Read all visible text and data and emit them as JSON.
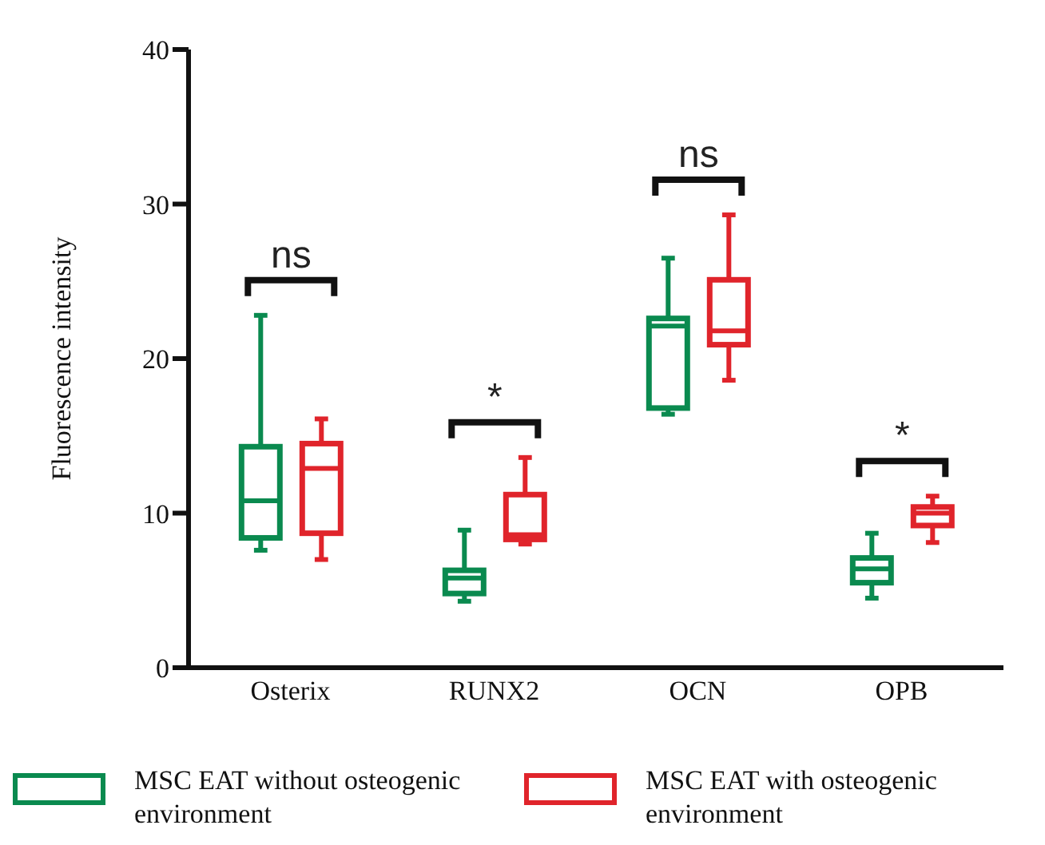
{
  "chart_data": {
    "type": "box",
    "ylabel": "Fluorescence intensity",
    "categories": [
      "Osterix",
      "RUNX2",
      "OCN",
      "OPB"
    ],
    "ylim": [
      0,
      40
    ],
    "yticks": [
      0,
      10,
      20,
      30,
      40
    ],
    "legend": "bottom",
    "series": [
      {
        "name": "MSC EAT without osteogenic environment",
        "color": "#0a8a4f",
        "boxes": [
          {
            "low": 7.6,
            "q1": 8.4,
            "median": 10.8,
            "q3": 14.3,
            "high": 22.8
          },
          {
            "low": 4.3,
            "q1": 4.8,
            "median": 5.8,
            "q3": 6.3,
            "high": 8.9
          },
          {
            "low": 16.4,
            "q1": 16.8,
            "median": 22.1,
            "q3": 22.6,
            "high": 26.5
          },
          {
            "low": 4.5,
            "q1": 5.5,
            "median": 6.4,
            "q3": 7.1,
            "high": 8.7
          }
        ]
      },
      {
        "name": "MSC EAT with osteogenic environment",
        "color": "#e0242b",
        "boxes": [
          {
            "low": 7.0,
            "q1": 8.7,
            "median": 12.9,
            "q3": 14.5,
            "high": 16.1
          },
          {
            "low": 8.0,
            "q1": 8.3,
            "median": 8.6,
            "q3": 11.2,
            "high": 13.6
          },
          {
            "low": 18.6,
            "q1": 20.9,
            "median": 21.8,
            "q3": 25.1,
            "high": 29.3
          },
          {
            "low": 8.1,
            "q1": 9.2,
            "median": 10.0,
            "q3": 10.4,
            "high": 11.1
          }
        ]
      }
    ],
    "annotations": [
      "ns",
      "*",
      "ns",
      "*"
    ]
  }
}
